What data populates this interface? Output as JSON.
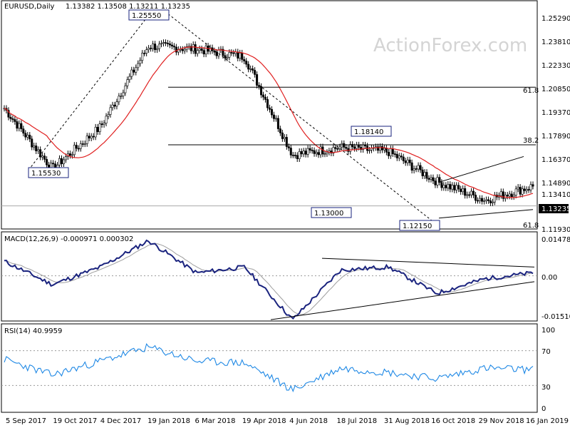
{
  "main_panel": {
    "symbol": "EURUSD,Daily",
    "ohlc": "1.13382 1.13508 1.13211 1.13235",
    "watermark": "ActionForex.com",
    "current_price_label": "1.13235",
    "y_ticks": [
      "1.25290",
      "1.23810",
      "1.22330",
      "1.20850",
      "1.19370",
      "1.17890",
      "1.16370",
      "1.14890",
      "1.13410",
      "1.11930"
    ],
    "fib_labels": [
      "61.8",
      "38.2",
      "61.8"
    ],
    "callouts": [
      "1.25550",
      "1.15530",
      "1.13000",
      "1.18140",
      "1.12150"
    ]
  },
  "macd_panel": {
    "label": "MACD(12,26,9) -0.000971 0.000302",
    "y_ticks": [
      "0.014786",
      "0.00",
      "-0.015107"
    ]
  },
  "rsi_panel": {
    "label": "RSI(14) 40.9959",
    "y_ticks": [
      "100",
      "70",
      "30",
      "0"
    ]
  },
  "x_labels": [
    "5 Sep 2017",
    "19 Oct 2017",
    "4 Dec 2017",
    "19 Jan 2018",
    "6 Mar 2018",
    "19 Apr 2018",
    "4 Jun 2018",
    "18 Jul 2018",
    "31 Aug 2018",
    "16 Oct 2018",
    "29 Nov 2018",
    "16 Jan 2019"
  ],
  "colors": {
    "candle": "#000000",
    "sma": "#e02020",
    "macd_line": "#1a237e",
    "macd_signal": "#9e9e9e",
    "rsi": "#1e88e5",
    "trendline": "#000000",
    "panel_border": "#000000"
  },
  "chart_data": [
    {
      "type": "line",
      "title": "EURUSD,Daily",
      "series": [
        {
          "name": "Close",
          "x": [
            "5 Sep 2017",
            "19 Oct 2017",
            "4 Dec 2017",
            "19 Jan 2018",
            "6 Mar 2018",
            "19 Apr 2018",
            "4 Jun 2018",
            "18 Jul 2018",
            "31 Aug 2018",
            "16 Oct 2018",
            "29 Nov 2018",
            "16 Jan 2019"
          ],
          "values": [
            1.195,
            1.156,
            1.183,
            1.235,
            1.233,
            1.228,
            1.165,
            1.17,
            1.167,
            1.148,
            1.136,
            1.145
          ]
        }
      ],
      "key_levels": {
        "high_jan_2018": 1.2555,
        "low_nov_2017": 1.1553,
        "low_aug_2018": 1.13,
        "high_sep_2018": 1.1814,
        "low_nov_2018": 1.1215,
        "fib_61_8_upper": 1.2085,
        "fib_38_2": 1.1715,
        "fib_61_8_lower": 1.119,
        "last": 1.13235
      },
      "ylim": [
        1.1175,
        1.264
      ]
    },
    {
      "type": "line",
      "title": "MACD(12,26,9) -0.000971 0.000302",
      "series": [
        {
          "name": "MACD",
          "x": [
            "5 Sep 2017",
            "19 Oct 2017",
            "4 Dec 2017",
            "19 Jan 2018",
            "6 Mar 2018",
            "19 Apr 2018",
            "4 Jun 2018",
            "18 Jul 2018",
            "31 Aug 2018",
            "16 Oct 2018",
            "29 Nov 2018",
            "16 Jan 2019"
          ],
          "values": [
            0.005,
            -0.003,
            0.003,
            0.012,
            0.001,
            0.003,
            -0.015,
            0.002,
            0.003,
            -0.006,
            -0.001,
            0.001
          ]
        }
      ],
      "ylim": [
        -0.0152,
        0.0148
      ]
    },
    {
      "type": "line",
      "title": "RSI(14) 40.9959",
      "series": [
        {
          "name": "RSI",
          "x": [
            "5 Sep 2017",
            "19 Oct 2017",
            "4 Dec 2017",
            "19 Jan 2018",
            "6 Mar 2018",
            "19 Apr 2018",
            "4 Jun 2018",
            "18 Jul 2018",
            "31 Aug 2018",
            "16 Oct 2018",
            "29 Nov 2018",
            "16 Jan 2019"
          ],
          "values": [
            60,
            42,
            58,
            74,
            58,
            56,
            25,
            50,
            45,
            38,
            50,
            48
          ]
        }
      ],
      "ylim": [
        0,
        100
      ]
    }
  ]
}
